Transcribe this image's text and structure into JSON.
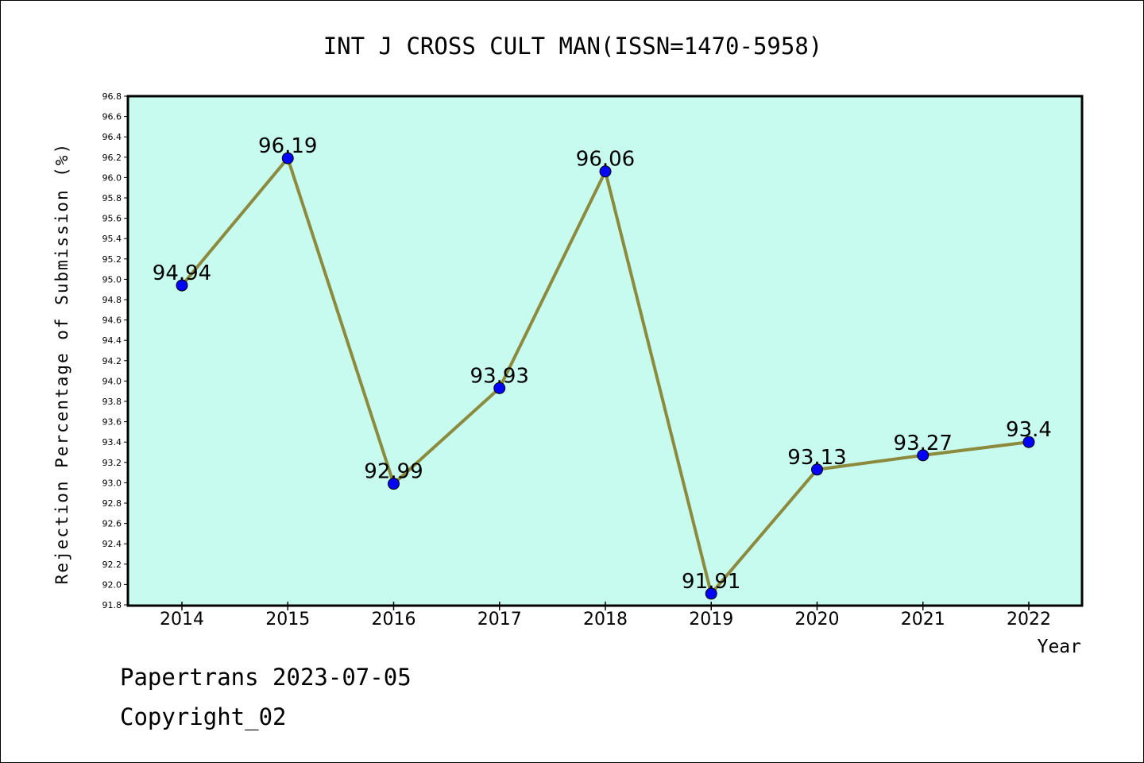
{
  "chart_data": {
    "type": "line",
    "title": "INT J CROSS CULT MAN(ISSN=1470-5958)",
    "xlabel": "Year",
    "ylabel": "Rejection Percentage of Submission (%)",
    "categories": [
      "2014",
      "2015",
      "2016",
      "2017",
      "2018",
      "2019",
      "2020",
      "2021",
      "2022"
    ],
    "series": [
      {
        "values": [
          94.94,
          96.19,
          92.99,
          93.93,
          96.06,
          91.91,
          93.13,
          93.27,
          93.4
        ],
        "value_labels": [
          "94.94",
          "96.19",
          "92.99",
          "93.93",
          "96.06",
          "91.91",
          "93.13",
          "93.27",
          "93.4"
        ]
      }
    ],
    "ylim": [
      91.8,
      96.8
    ],
    "y_ticks": [
      "91.8",
      "92.0",
      "92.2",
      "92.4",
      "92.6",
      "92.8",
      "93.0",
      "93.2",
      "93.4",
      "93.6",
      "93.8",
      "94.0",
      "94.2",
      "94.4",
      "94.6",
      "94.8",
      "95.0",
      "95.2",
      "95.4",
      "95.6",
      "95.8",
      "96.0",
      "96.2",
      "96.4",
      "96.6",
      "96.8"
    ],
    "grid": false,
    "legend": "none",
    "colors": {
      "plot_background": "#c8fbef",
      "line": "#8c8a3c",
      "marker": "#0000ff"
    }
  },
  "footer": {
    "line1": "Papertrans 2023-07-05",
    "line2": "Copyright_02"
  }
}
